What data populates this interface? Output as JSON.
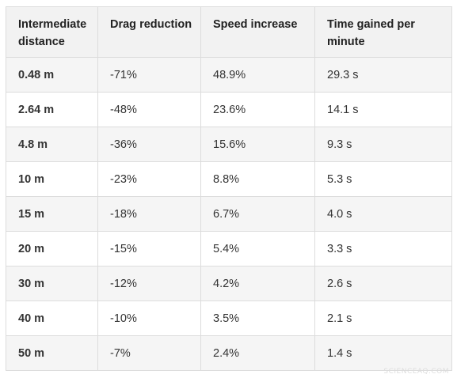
{
  "table": {
    "headers": [
      "Intermediate distance",
      "Drag reduction",
      "Speed increase",
      "Time gained per minute"
    ],
    "rows": [
      [
        "0.48 m",
        "-71%",
        "48.9%",
        "29.3 s"
      ],
      [
        "2.64 m",
        "-48%",
        "23.6%",
        "14.1 s"
      ],
      [
        "4.8 m",
        "-36%",
        "15.6%",
        "9.3 s"
      ],
      [
        "10 m",
        "-23%",
        "8.8%",
        "5.3 s"
      ],
      [
        "15 m",
        "-18%",
        "6.7%",
        "4.0 s"
      ],
      [
        "20 m",
        "-15%",
        "5.4%",
        "3.3 s"
      ],
      [
        "30 m",
        "-12%",
        "4.2%",
        "2.6 s"
      ],
      [
        "40 m",
        "-10%",
        "3.5%",
        "2.1 s"
      ],
      [
        "50 m",
        "-7%",
        "2.4%",
        "1.4 s"
      ]
    ]
  },
  "watermark": "SCIENCEAQ.COM",
  "colors": {
    "header_bg": "#f2f2f2",
    "stripe_bg": "#f5f5f5",
    "border": "#dcdcdc",
    "text": "#333333"
  }
}
